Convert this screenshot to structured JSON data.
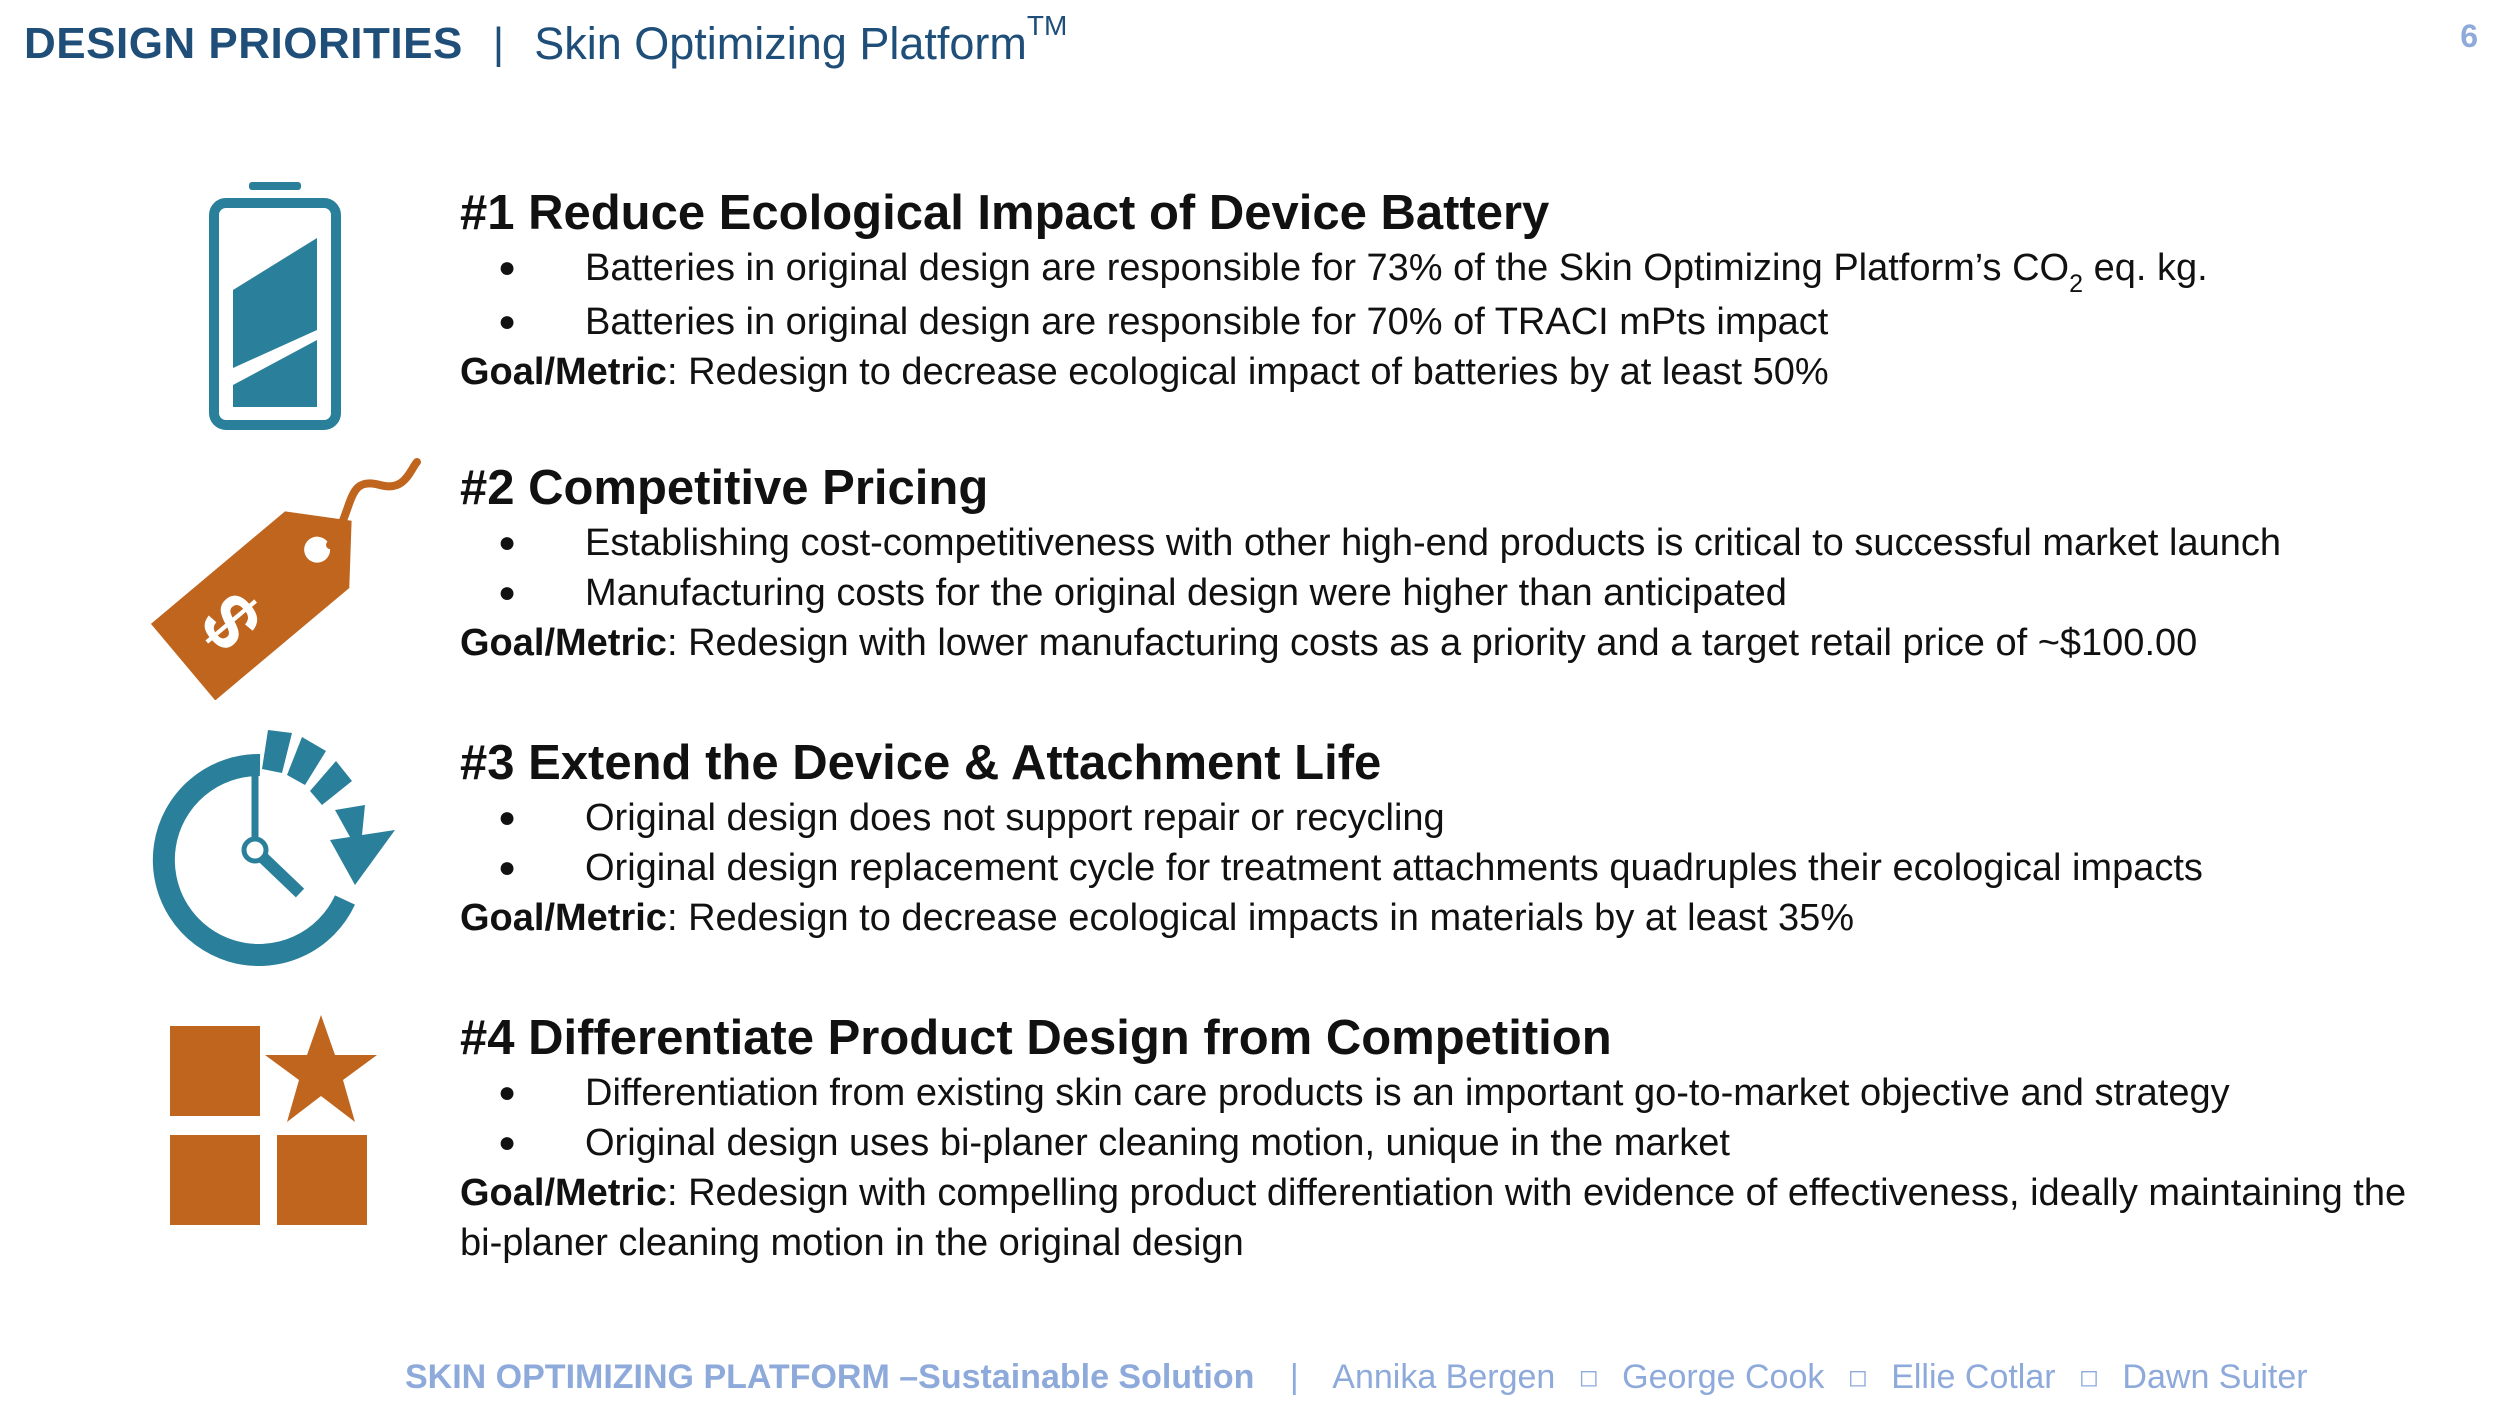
{
  "header": {
    "title": "DESIGN PRIORITIES",
    "separator": "|",
    "subtitle": "Skin Optimizing Platform",
    "trademark": "TM"
  },
  "page_number": "6",
  "colors": {
    "navy": "#1f4e79",
    "teal": "#2a7f9a",
    "orange": "#c0651e",
    "footer": "#8eaadb"
  },
  "sections": [
    {
      "icon": "battery-icon",
      "heading": "#1 Reduce Ecological Impact of Device Battery",
      "bullets": [
        {
          "before": "Batteries in original design are responsible for 73% of the Skin Optimizing Platform’s  CO",
          "sub": "2",
          "after": " eq. kg."
        },
        {
          "text": "Batteries in original design are responsible for 70% of TRACI mPts impact"
        }
      ],
      "goal_label": "Goal/Metric",
      "goal_text": ": Redesign to decrease ecological impact of batteries by at least 50%"
    },
    {
      "icon": "price-tag-icon",
      "heading": "#2 Competitive Pricing",
      "bullets": [
        {
          "text": "Establishing cost-competitiveness with other high-end products is critical to successful market launch"
        },
        {
          "text": "Manufacturing costs for the original design were higher than anticipated"
        }
      ],
      "goal_label": "Goal/Metric",
      "goal_text": ": Redesign with lower manufacturing costs as a priority and a target retail price of ~$100.00"
    },
    {
      "icon": "clock-cycle-icon",
      "heading": "#3 Extend the Device & Attachment Life",
      "bullets": [
        {
          "text": "Original design does not support repair or recycling"
        },
        {
          "text": "Original design replacement cycle for treatment attachments quadruples their ecological impacts"
        }
      ],
      "goal_label": "Goal/Metric",
      "goal_text": ": Redesign to decrease ecological impacts in materials by at least 35%"
    },
    {
      "icon": "blocks-star-icon",
      "heading": "#4 Differentiate Product Design from Competition",
      "bullets": [
        {
          "text": "Differentiation from existing skin care products is an important go-to-market objective and strategy"
        },
        {
          "text": "Original design uses bi-planer cleaning motion, unique in the market"
        }
      ],
      "goal_label": "Goal/Metric",
      "goal_text": ": Redesign with compelling product differentiation with evidence of effectiveness, ideally maintaining the bi-planer cleaning motion in the original design"
    }
  ],
  "bullet_glyph": "●",
  "footer": {
    "title": "SKIN OPTIMIZING PLATFORM –Sustainable Solution",
    "separator": "|",
    "square": "◻",
    "authors": [
      "Annika Bergen",
      "George Cook",
      "Ellie Cotlar",
      "Dawn Suiter"
    ]
  }
}
